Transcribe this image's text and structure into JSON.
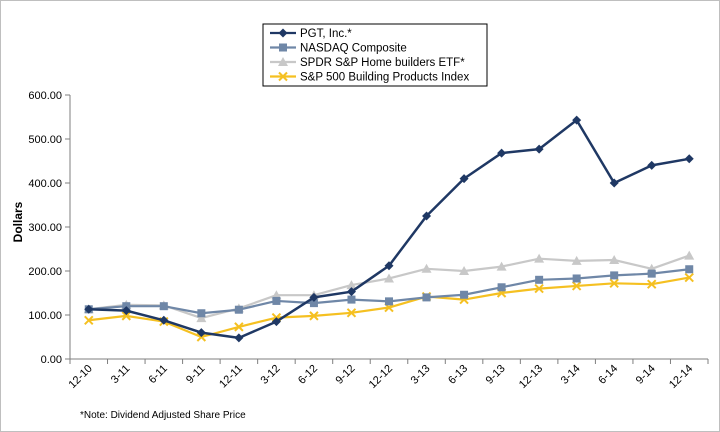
{
  "chart_data": {
    "type": "line",
    "title": "",
    "xlabel": "",
    "ylabel": "Dollars",
    "ylim": [
      0,
      600
    ],
    "yticks": [
      "0.00",
      "100.00",
      "200.00",
      "300.00",
      "400.00",
      "500.00",
      "600.00"
    ],
    "ytick_values": [
      0,
      100,
      200,
      300,
      400,
      500,
      600
    ],
    "categories": [
      "12-10",
      "3-11",
      "6-11",
      "9-11",
      "12-11",
      "3-12",
      "6-12",
      "9-12",
      "12-12",
      "3-13",
      "6-13",
      "9-13",
      "12-13",
      "3-14",
      "6-14",
      "9-14",
      "12-14"
    ],
    "grid": false,
    "legend_position": "top-center",
    "note": "*Note: Dividend Adjusted Share Price",
    "series": [
      {
        "name": "PGT, Inc.*",
        "color": "#1f3864",
        "marker": "diamond",
        "values": [
          113,
          110,
          88,
          60,
          48,
          85,
          140,
          153,
          212,
          325,
          410,
          468,
          477,
          543,
          400,
          440,
          455
        ]
      },
      {
        "name": "NASDAQ Composite",
        "color": "#6f87a7",
        "marker": "square",
        "values": [
          113,
          120,
          120,
          104,
          112,
          132,
          127,
          135,
          131,
          140,
          146,
          163,
          180,
          183,
          190,
          194,
          204
        ]
      },
      {
        "name": "SPDR S&P Home builders  ETF*",
        "color": "#c8c8c8",
        "marker": "triangle",
        "values": [
          113,
          123,
          122,
          93,
          115,
          145,
          145,
          168,
          183,
          205,
          200,
          210,
          228,
          223,
          225,
          205,
          235
        ]
      },
      {
        "name": "S&P 500 Building  Products Index",
        "color": "#f5c021",
        "marker": "x",
        "values": [
          88,
          98,
          85,
          50,
          73,
          94,
          98,
          105,
          117,
          142,
          135,
          150,
          160,
          166,
          172,
          170,
          185
        ]
      }
    ]
  }
}
